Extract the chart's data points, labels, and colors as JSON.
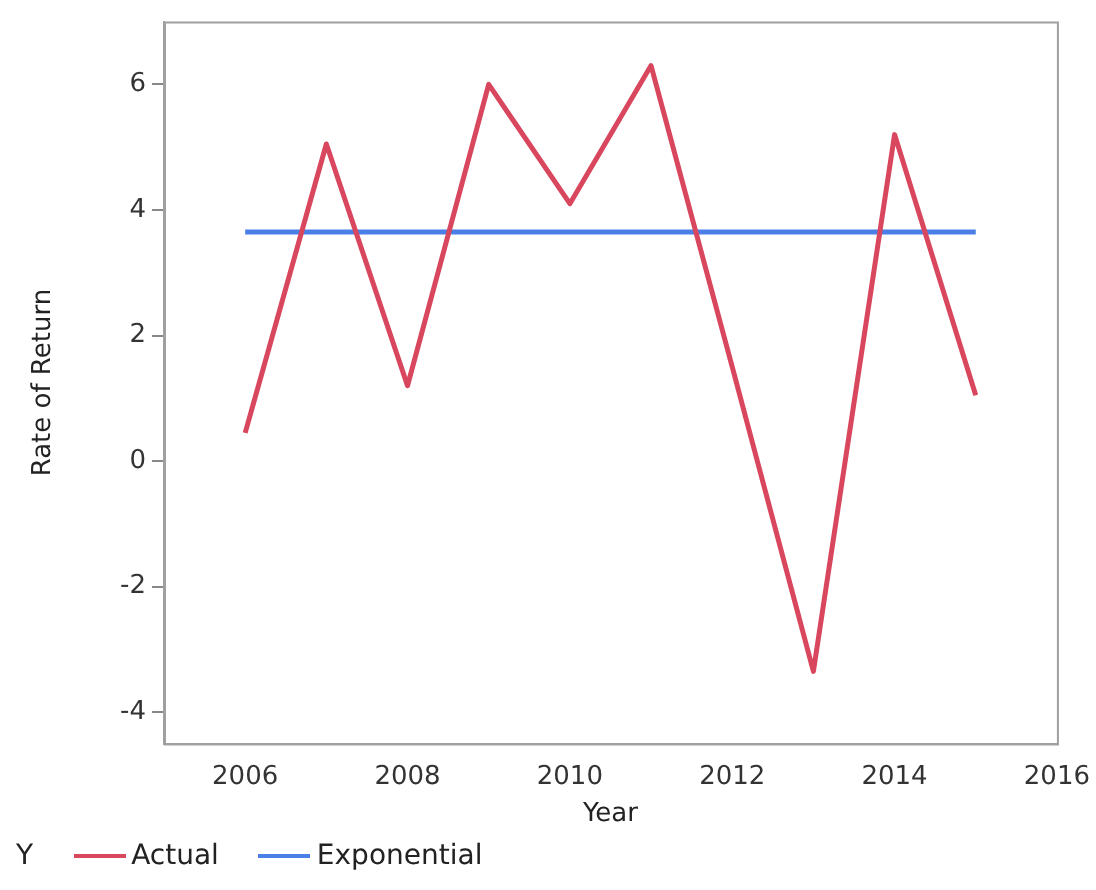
{
  "chart_data": {
    "type": "line",
    "xlabel": "Year",
    "ylabel": "Rate of Return",
    "legend_title": "Y",
    "x": [
      2006,
      2007,
      2008,
      2009,
      2010,
      2011,
      2012,
      2013,
      2014,
      2015
    ],
    "series": [
      {
        "name": "Actual",
        "color": "#d9475e",
        "values": [
          0.45,
          5.05,
          1.2,
          6.0,
          4.1,
          6.3,
          1.5,
          -3.35,
          5.2,
          1.05
        ]
      },
      {
        "name": "Exponential",
        "color": "#4a7fe8",
        "values": [
          3.65,
          3.65,
          3.65,
          3.65,
          3.65,
          3.65,
          3.65,
          3.65,
          3.65,
          3.65
        ]
      }
    ],
    "xlim": [
      2005,
      2016
    ],
    "xticks": [
      2006,
      2008,
      2010,
      2012,
      2014,
      2016
    ],
    "ylim": [
      -4.5,
      7
    ],
    "yticks": [
      -4,
      -2,
      0,
      2,
      4,
      6
    ],
    "grid": false,
    "legend": "bottom left",
    "marker": "none",
    "line_style": "solid"
  }
}
